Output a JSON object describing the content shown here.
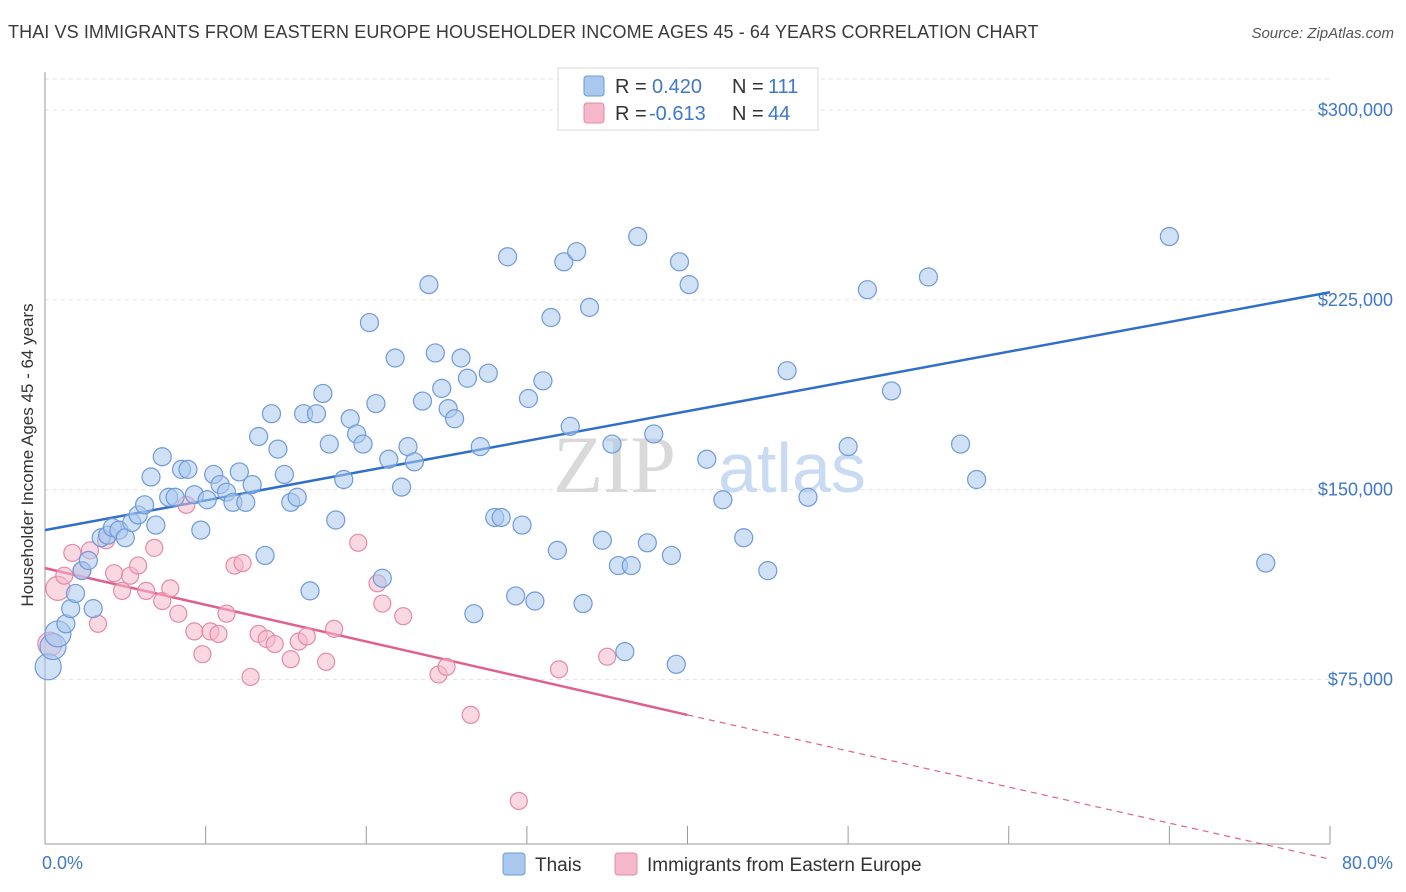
{
  "title": "THAI VS IMMIGRANTS FROM EASTERN EUROPE HOUSEHOLDER INCOME AGES 45 - 64 YEARS CORRELATION CHART",
  "source": "Source: ZipAtlas.com",
  "watermark": {
    "zip": "ZIP",
    "atlas": "atlas"
  },
  "colors": {
    "blue": "#3f78c8",
    "blue_fill": "#a9c8ee",
    "blue_line": "#2f6fcb",
    "pink": "#e06690",
    "pink_fill": "#f5b8cb",
    "pink_line": "#e0608c"
  },
  "legend": {
    "rows": [
      {
        "r_label": "R = ",
        "r_value": "0.420",
        "n_label": "N = ",
        "n_value": "111"
      },
      {
        "r_label": "R = ",
        "r_value": "-0.613",
        "n_label": "N = ",
        "n_value": "44"
      }
    ]
  },
  "chart_data": {
    "type": "scatter",
    "ylabel": "Householder Income Ages 45 - 64 years",
    "xlim": [
      0,
      80
    ],
    "ylim": [
      10000,
      315000
    ],
    "x_tick_labels": [
      "0.0%",
      "80.0%"
    ],
    "y_ticks": [
      {
        "value": 75000,
        "label": "$75,000"
      },
      {
        "value": 150000,
        "label": "$150,000"
      },
      {
        "value": 225000,
        "label": "$225,000"
      },
      {
        "value": 300000,
        "label": "$300,000"
      }
    ],
    "grid": "horizontal dashed",
    "series": [
      {
        "name": "Thais",
        "color": "#a9c8ee",
        "trend": {
          "x": [
            0,
            80
          ],
          "y": [
            134000,
            228000
          ]
        },
        "points": [
          [
            0.2,
            80000
          ],
          [
            0.5,
            88000
          ],
          [
            0.8,
            93000
          ],
          [
            1.3,
            97000
          ],
          [
            1.6,
            103000
          ],
          [
            1.9,
            109000
          ],
          [
            2.3,
            118000
          ],
          [
            2.7,
            122000
          ],
          [
            3.0,
            103000
          ],
          [
            3.5,
            131000
          ],
          [
            3.9,
            132000
          ],
          [
            4.2,
            135000
          ],
          [
            4.6,
            134000
          ],
          [
            5.0,
            131000
          ],
          [
            5.4,
            137000
          ],
          [
            5.8,
            140000
          ],
          [
            6.2,
            144000
          ],
          [
            6.6,
            155000
          ],
          [
            6.9,
            136000
          ],
          [
            7.3,
            163000
          ],
          [
            7.7,
            147000
          ],
          [
            8.1,
            147000
          ],
          [
            8.5,
            158000
          ],
          [
            8.9,
            158000
          ],
          [
            9.3,
            148000
          ],
          [
            9.7,
            134000
          ],
          [
            10.1,
            146000
          ],
          [
            10.5,
            156000
          ],
          [
            10.9,
            152000
          ],
          [
            11.3,
            149000
          ],
          [
            11.7,
            145000
          ],
          [
            12.1,
            157000
          ],
          [
            12.5,
            145000
          ],
          [
            12.9,
            152000
          ],
          [
            13.3,
            171000
          ],
          [
            13.7,
            124000
          ],
          [
            14.1,
            180000
          ],
          [
            14.5,
            166000
          ],
          [
            14.9,
            156000
          ],
          [
            15.3,
            145000
          ],
          [
            15.7,
            147000
          ],
          [
            16.1,
            180000
          ],
          [
            16.5,
            110000
          ],
          [
            16.9,
            180000
          ],
          [
            17.3,
            188000
          ],
          [
            17.7,
            168000
          ],
          [
            18.1,
            138000
          ],
          [
            18.6,
            154000
          ],
          [
            19.0,
            178000
          ],
          [
            19.4,
            172000
          ],
          [
            19.8,
            168000
          ],
          [
            20.2,
            216000
          ],
          [
            20.6,
            184000
          ],
          [
            21.0,
            115000
          ],
          [
            21.4,
            162000
          ],
          [
            21.8,
            202000
          ],
          [
            22.2,
            151000
          ],
          [
            22.6,
            167000
          ],
          [
            23.0,
            161000
          ],
          [
            23.5,
            185000
          ],
          [
            23.9,
            231000
          ],
          [
            24.3,
            204000
          ],
          [
            24.7,
            190000
          ],
          [
            25.1,
            182000
          ],
          [
            25.5,
            178000
          ],
          [
            25.9,
            202000
          ],
          [
            26.3,
            194000
          ],
          [
            26.7,
            101000
          ],
          [
            27.1,
            167000
          ],
          [
            27.6,
            196000
          ],
          [
            28.0,
            139000
          ],
          [
            28.4,
            139000
          ],
          [
            28.8,
            242000
          ],
          [
            29.3,
            108000
          ],
          [
            29.7,
            136000
          ],
          [
            30.1,
            186000
          ],
          [
            30.5,
            106000
          ],
          [
            31.0,
            193000
          ],
          [
            31.5,
            218000
          ],
          [
            31.9,
            126000
          ],
          [
            32.3,
            240000
          ],
          [
            32.7,
            175000
          ],
          [
            33.1,
            244000
          ],
          [
            33.5,
            105000
          ],
          [
            33.9,
            222000
          ],
          [
            34.7,
            130000
          ],
          [
            35.3,
            168000
          ],
          [
            35.7,
            120000
          ],
          [
            36.1,
            86000
          ],
          [
            36.5,
            120000
          ],
          [
            36.9,
            250000
          ],
          [
            37.5,
            129000
          ],
          [
            37.9,
            172000
          ],
          [
            39.0,
            124000
          ],
          [
            39.3,
            81000
          ],
          [
            39.5,
            240000
          ],
          [
            40.1,
            231000
          ],
          [
            41.2,
            162000
          ],
          [
            42.2,
            146000
          ],
          [
            43.5,
            131000
          ],
          [
            45.0,
            118000
          ],
          [
            46.2,
            197000
          ],
          [
            47.5,
            147000
          ],
          [
            50.0,
            167000
          ],
          [
            51.2,
            229000
          ],
          [
            52.7,
            189000
          ],
          [
            55.0,
            234000
          ],
          [
            57.0,
            168000
          ],
          [
            58.0,
            154000
          ],
          [
            70.0,
            250000
          ],
          [
            76.0,
            121000
          ]
        ]
      },
      {
        "name": "Immigrants from Eastern Europe",
        "color": "#f5b8cb",
        "trend": {
          "x": [
            0,
            40
          ],
          "y": [
            119000,
            61000
          ]
        },
        "trend_dashed": {
          "x": [
            40,
            80
          ],
          "y": [
            61000,
            4000
          ]
        },
        "points": [
          [
            0.3,
            89000
          ],
          [
            0.8,
            111000
          ],
          [
            1.2,
            116000
          ],
          [
            1.7,
            125000
          ],
          [
            2.3,
            118000
          ],
          [
            2.8,
            126000
          ],
          [
            3.3,
            97000
          ],
          [
            3.8,
            130000
          ],
          [
            4.3,
            117000
          ],
          [
            4.8,
            110000
          ],
          [
            5.3,
            116000
          ],
          [
            5.8,
            120000
          ],
          [
            6.3,
            110000
          ],
          [
            6.8,
            127000
          ],
          [
            7.3,
            106000
          ],
          [
            7.8,
            111000
          ],
          [
            8.3,
            101000
          ],
          [
            8.8,
            144000
          ],
          [
            9.3,
            94000
          ],
          [
            9.8,
            85000
          ],
          [
            10.3,
            94000
          ],
          [
            10.8,
            93000
          ],
          [
            11.3,
            101000
          ],
          [
            11.8,
            120000
          ],
          [
            12.3,
            121000
          ],
          [
            12.8,
            76000
          ],
          [
            13.3,
            93000
          ],
          [
            13.8,
            91000
          ],
          [
            14.3,
            89000
          ],
          [
            15.3,
            83000
          ],
          [
            15.8,
            90000
          ],
          [
            16.3,
            92000
          ],
          [
            17.5,
            82000
          ],
          [
            18.0,
            95000
          ],
          [
            19.5,
            129000
          ],
          [
            20.7,
            113000
          ],
          [
            21.0,
            105000
          ],
          [
            22.3,
            100000
          ],
          [
            24.5,
            77000
          ],
          [
            25.0,
            80000
          ],
          [
            26.5,
            61000
          ],
          [
            29.5,
            27000
          ],
          [
            32.0,
            79000
          ],
          [
            35.0,
            84000
          ]
        ]
      }
    ]
  },
  "bottom_legend": [
    {
      "label": "Thais"
    },
    {
      "label": "Immigrants from Eastern Europe"
    }
  ]
}
